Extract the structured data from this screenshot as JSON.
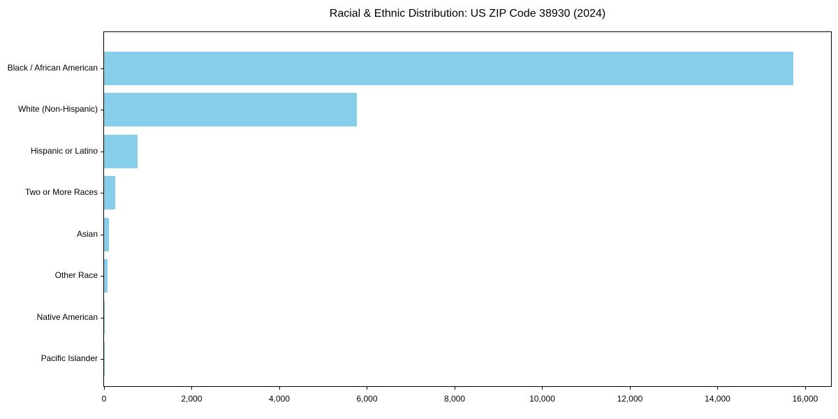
{
  "title": "Racial & Ethnic Distribution: US ZIP Code 38930 (2024)",
  "chart_data": {
    "type": "bar",
    "orientation": "horizontal",
    "title": "Racial & Ethnic Distribution: US ZIP Code 38930 (2024)",
    "categories": [
      "Black / African American",
      "White (Non-Hispanic)",
      "Hispanic or Latino",
      "Two or More Races",
      "Asian",
      "Other Race",
      "Native American",
      "Pacific Islander"
    ],
    "values": [
      15730,
      5770,
      765,
      255,
      115,
      80,
      15,
      3
    ],
    "xlabel": "",
    "ylabel": "",
    "xlim": [
      0,
      16590
    ],
    "xticks": {
      "values": [
        0,
        2000,
        4000,
        6000,
        8000,
        10000,
        12000,
        14000,
        16000
      ],
      "labels": [
        "0",
        "2,000",
        "4,000",
        "6,000",
        "8,000",
        "10,000",
        "12,000",
        "14,000",
        "16,000"
      ]
    },
    "bar_color": "#87CEEB",
    "grid": false,
    "legend": null,
    "frame": "full-box"
  }
}
